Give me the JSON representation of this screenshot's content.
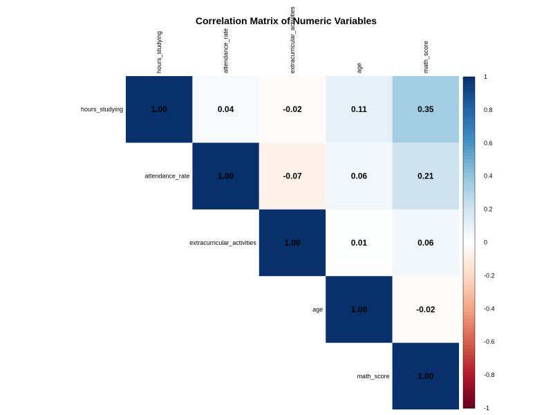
{
  "chart_data": {
    "type": "heatmap",
    "title": "Correlation Matrix of Numeric Variables",
    "variables": [
      "hours_studying",
      "attendance_rate",
      "extracurricular_activities",
      "age",
      "math_score"
    ],
    "matrix": [
      [
        1.0,
        0.04,
        -0.02,
        0.11,
        0.35
      ],
      [
        0.04,
        1.0,
        -0.07,
        0.06,
        0.21
      ],
      [
        -0.02,
        -0.07,
        1.0,
        0.01,
        0.06
      ],
      [
        0.11,
        0.06,
        0.01,
        1.0,
        -0.02
      ],
      [
        0.35,
        0.21,
        0.06,
        -0.02,
        1.0
      ]
    ],
    "display": "upper-triangle",
    "value_format": "2-decimal",
    "color_range": [
      -1,
      1
    ],
    "legend": {
      "position": "right",
      "ticks": [
        "1",
        "0.8",
        "0.6",
        "0.4",
        "0.2",
        "0",
        "-0.2",
        "-0.4",
        "-0.6",
        "-0.8",
        "-1"
      ]
    },
    "colors": {
      "positive_strong": "#08306b",
      "neutral": "#ffffff",
      "negative_strong": "#67001f"
    }
  }
}
